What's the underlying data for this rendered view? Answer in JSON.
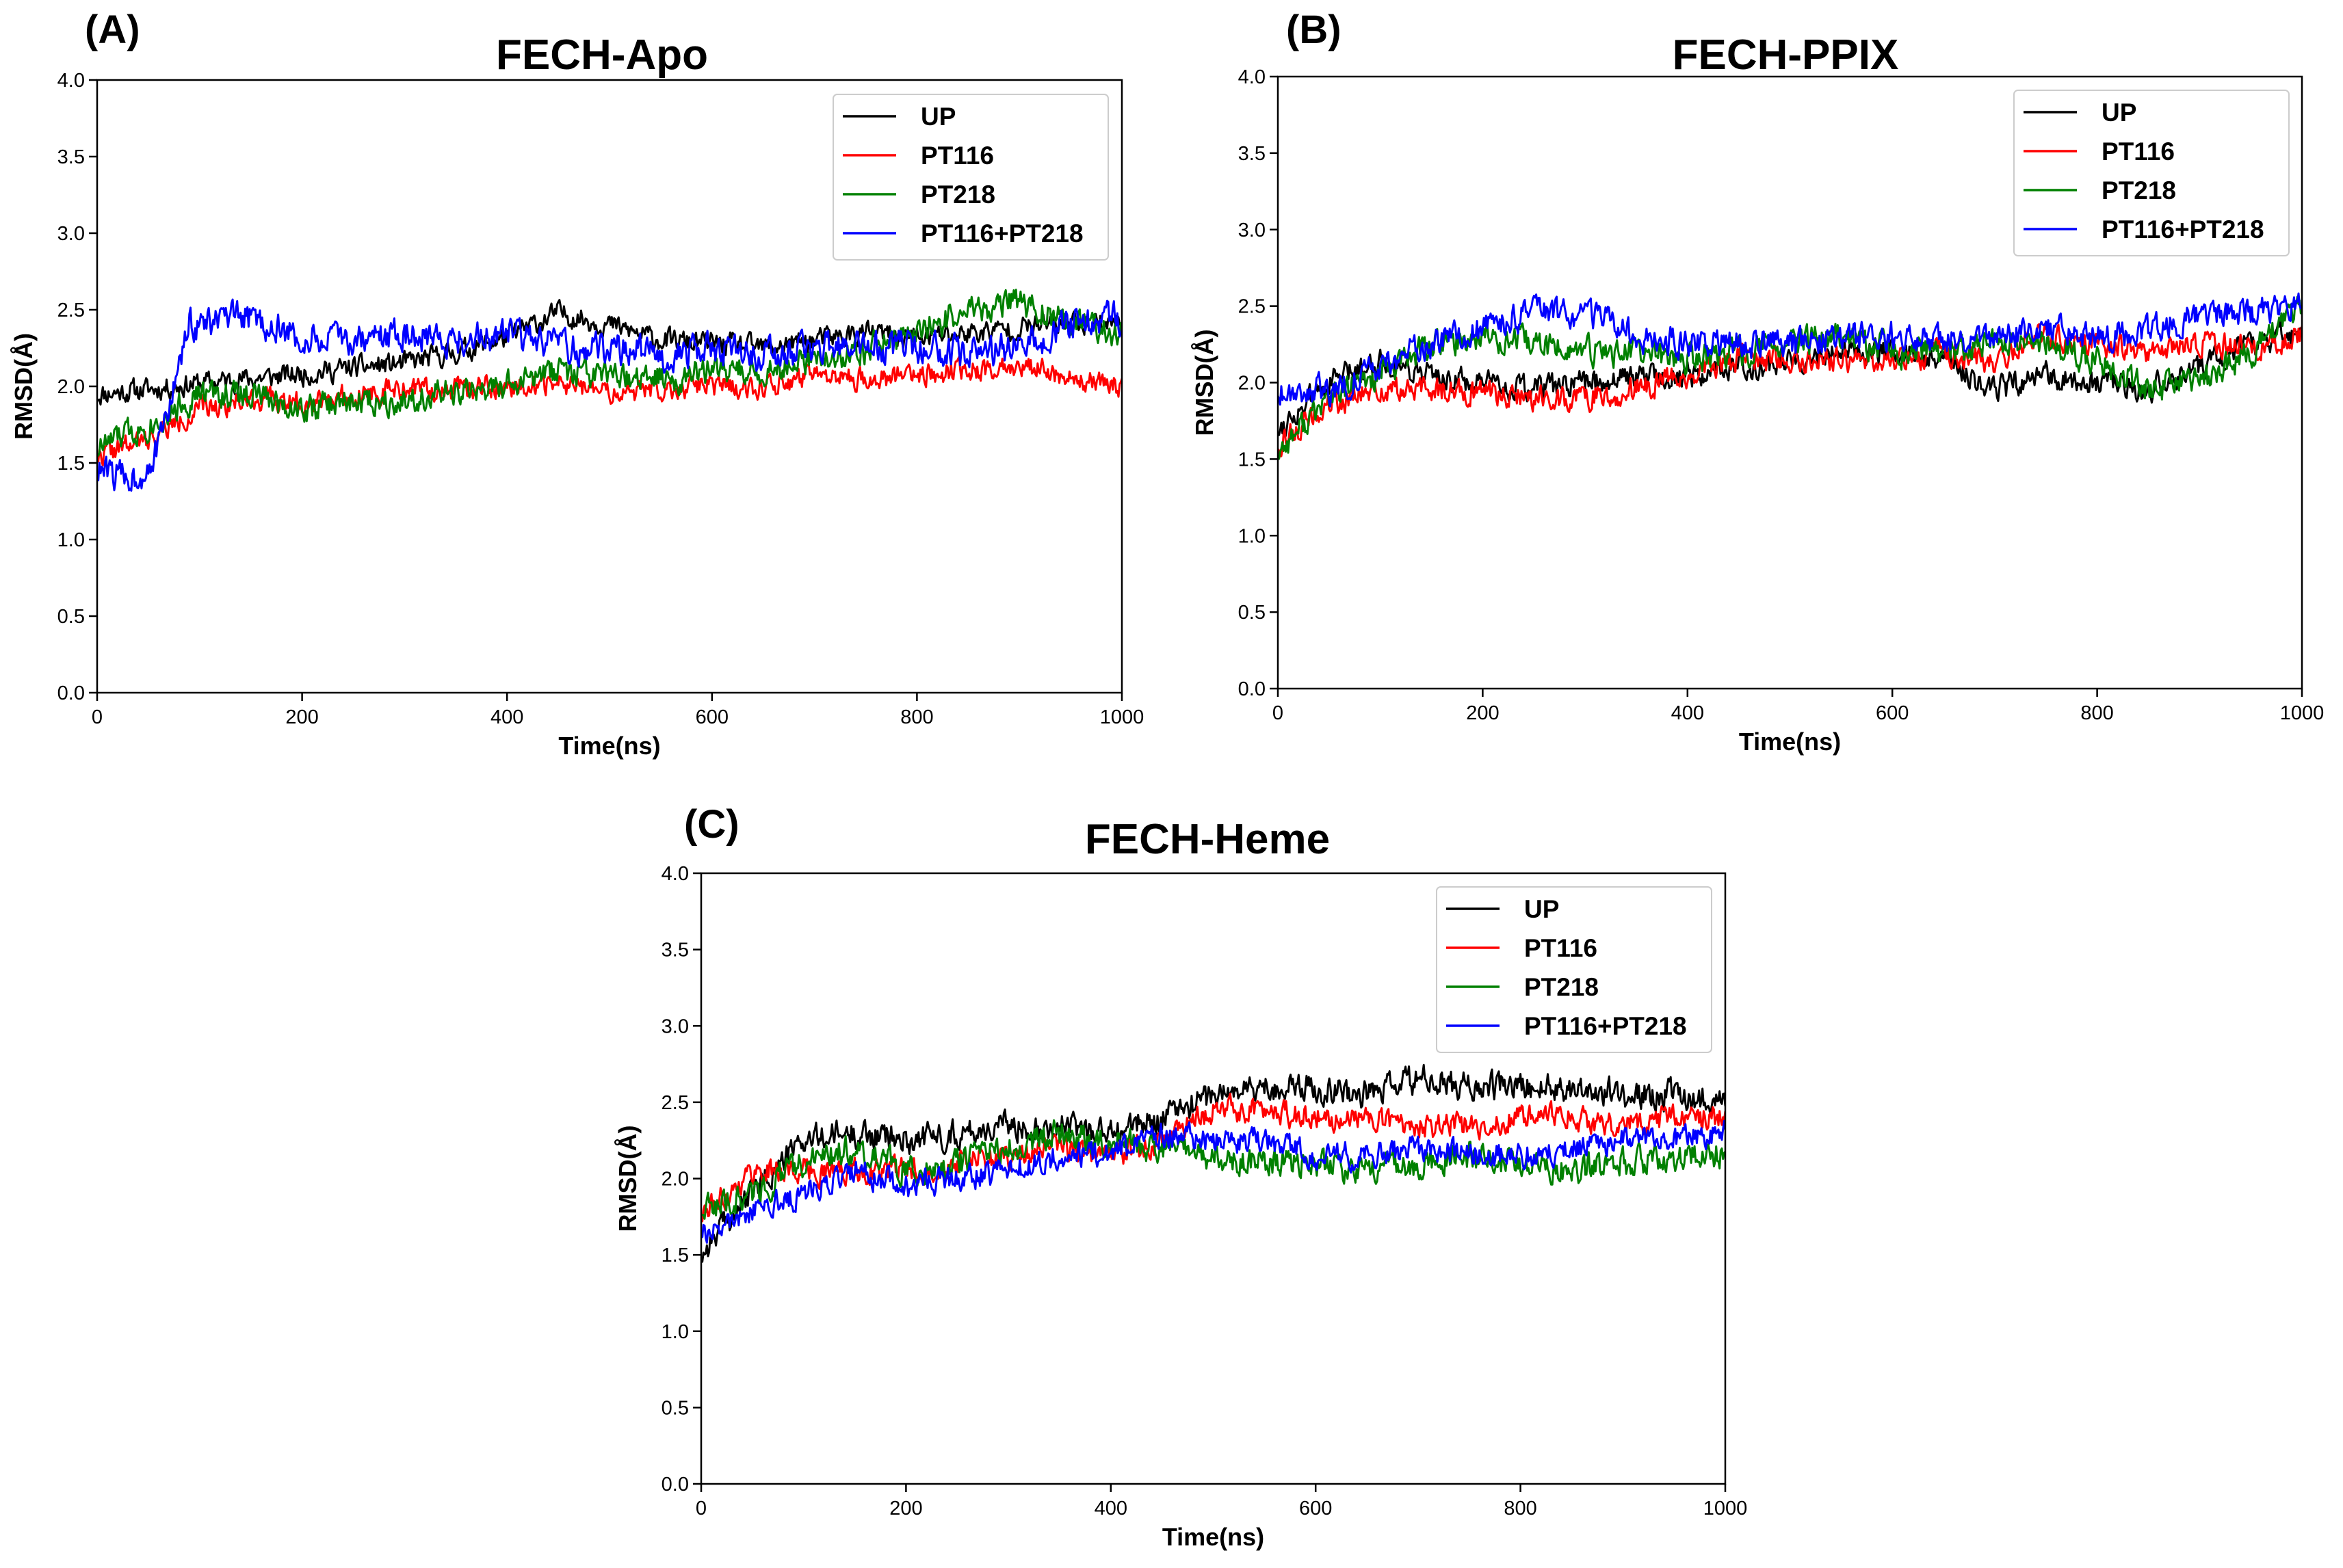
{
  "chart_data": [
    {
      "id": "A",
      "panel_label": "(A)",
      "type": "line",
      "title": "FECH-Apo",
      "xlabel": "Time(ns)",
      "ylabel": "RMSD(Å)",
      "xlim": [
        0,
        1000
      ],
      "ylim": [
        0.0,
        4.0
      ],
      "xticks": [
        "0",
        "200",
        "400",
        "600",
        "800",
        "1000"
      ],
      "yticks": [
        "0.0",
        "0.5",
        "1.0",
        "1.5",
        "2.0",
        "2.5",
        "3.0",
        "3.5",
        "4.0"
      ],
      "legend_position": "top-right",
      "series": [
        {
          "name": "UP",
          "color": "#000000",
          "noise": 0.07,
          "seed": 11,
          "x": [
            0,
            50,
            100,
            150,
            200,
            250,
            300,
            350,
            400,
            450,
            500,
            550,
            600,
            650,
            700,
            750,
            800,
            850,
            900,
            950,
            1000
          ],
          "values": [
            1.95,
            1.98,
            2.02,
            2.05,
            2.08,
            2.12,
            2.15,
            2.22,
            2.32,
            2.48,
            2.4,
            2.3,
            2.28,
            2.25,
            2.3,
            2.35,
            2.32,
            2.35,
            2.38,
            2.42,
            2.42
          ]
        },
        {
          "name": "PT116",
          "color": "#ff0000",
          "noise": 0.07,
          "seed": 22,
          "x": [
            0,
            50,
            100,
            150,
            200,
            250,
            300,
            350,
            400,
            450,
            500,
            550,
            600,
            650,
            700,
            750,
            800,
            850,
            900,
            950,
            1000
          ],
          "values": [
            1.55,
            1.65,
            1.85,
            1.92,
            1.9,
            1.95,
            1.98,
            1.98,
            2.0,
            2.02,
            1.95,
            1.98,
            2.0,
            2.0,
            2.05,
            2.05,
            2.08,
            2.1,
            2.15,
            2.05,
            2.0
          ]
        },
        {
          "name": "PT218",
          "color": "#008000",
          "noise": 0.09,
          "seed": 33,
          "x": [
            0,
            50,
            100,
            150,
            200,
            250,
            300,
            350,
            400,
            450,
            500,
            550,
            600,
            650,
            700,
            750,
            800,
            850,
            900,
            950,
            1000
          ],
          "values": [
            1.6,
            1.75,
            1.95,
            1.95,
            1.85,
            1.9,
            1.92,
            1.95,
            2.0,
            2.1,
            2.05,
            2.05,
            2.1,
            2.1,
            2.15,
            2.25,
            2.35,
            2.5,
            2.55,
            2.4,
            2.35
          ]
        },
        {
          "name": "PT116+PT218",
          "color": "#0000ff",
          "noise": 0.1,
          "seed": 44,
          "x": [
            0,
            40,
            60,
            90,
            150,
            200,
            250,
            300,
            350,
            400,
            450,
            500,
            550,
            600,
            650,
            700,
            750,
            800,
            850,
            900,
            950,
            1000
          ],
          "values": [
            1.45,
            1.4,
            1.6,
            2.4,
            2.45,
            2.3,
            2.3,
            2.35,
            2.3,
            2.35,
            2.25,
            2.25,
            2.2,
            2.25,
            2.2,
            2.25,
            2.25,
            2.25,
            2.22,
            2.25,
            2.4,
            2.45
          ]
        }
      ]
    },
    {
      "id": "B",
      "panel_label": "(B)",
      "type": "line",
      "title": "FECH-PPIX",
      "xlabel": "Time(ns)",
      "ylabel": "RMSD(Å)",
      "xlim": [
        0,
        1000
      ],
      "ylim": [
        0.0,
        4.0
      ],
      "xticks": [
        "0",
        "200",
        "400",
        "600",
        "800",
        "1000"
      ],
      "yticks": [
        "0.0",
        "0.5",
        "1.0",
        "1.5",
        "2.0",
        "2.5",
        "3.0",
        "3.5",
        "4.0"
      ],
      "legend_position": "top-right",
      "series": [
        {
          "name": "UP",
          "color": "#000000",
          "noise": 0.08,
          "seed": 55,
          "x": [
            0,
            50,
            100,
            150,
            200,
            250,
            300,
            350,
            400,
            450,
            500,
            550,
            600,
            650,
            700,
            750,
            800,
            850,
            900,
            950,
            1000
          ],
          "values": [
            1.7,
            2.0,
            2.15,
            2.05,
            1.98,
            1.95,
            2.0,
            2.05,
            2.05,
            2.1,
            2.15,
            2.2,
            2.2,
            2.15,
            1.95,
            2.05,
            2.0,
            1.95,
            2.1,
            2.25,
            2.35
          ]
        },
        {
          "name": "PT116",
          "color": "#ff0000",
          "noise": 0.08,
          "seed": 66,
          "x": [
            0,
            50,
            100,
            150,
            200,
            250,
            300,
            350,
            400,
            450,
            500,
            550,
            600,
            650,
            700,
            750,
            800,
            850,
            900,
            950,
            1000
          ],
          "values": [
            1.6,
            1.85,
            1.95,
            1.95,
            1.95,
            1.9,
            1.9,
            1.95,
            2.05,
            2.15,
            2.15,
            2.15,
            2.15,
            2.2,
            2.15,
            2.3,
            2.25,
            2.2,
            2.25,
            2.25,
            2.3
          ]
        },
        {
          "name": "PT218",
          "color": "#008000",
          "noise": 0.09,
          "seed": 77,
          "x": [
            0,
            50,
            100,
            150,
            200,
            250,
            300,
            350,
            400,
            450,
            500,
            550,
            600,
            650,
            700,
            750,
            800,
            850,
            900,
            950,
            1000
          ],
          "values": [
            1.55,
            1.9,
            2.05,
            2.25,
            2.3,
            2.25,
            2.2,
            2.2,
            2.15,
            2.2,
            2.25,
            2.3,
            2.2,
            2.2,
            2.25,
            2.25,
            2.15,
            1.95,
            2.0,
            2.2,
            2.5
          ]
        },
        {
          "name": "PT116+PT218",
          "color": "#0000ff",
          "noise": 0.09,
          "seed": 88,
          "x": [
            0,
            50,
            100,
            150,
            200,
            250,
            300,
            350,
            400,
            450,
            500,
            550,
            600,
            650,
            700,
            750,
            800,
            850,
            900,
            950,
            1000
          ],
          "values": [
            1.95,
            1.95,
            2.1,
            2.25,
            2.35,
            2.45,
            2.45,
            2.3,
            2.25,
            2.25,
            2.25,
            2.3,
            2.3,
            2.3,
            2.3,
            2.35,
            2.3,
            2.35,
            2.45,
            2.45,
            2.5
          ]
        }
      ]
    },
    {
      "id": "C",
      "panel_label": "(C)",
      "type": "line",
      "title": "FECH-Heme",
      "xlabel": "Time(ns)",
      "ylabel": "RMSD(Å)",
      "xlim": [
        0,
        1000
      ],
      "ylim": [
        0.0,
        4.0
      ],
      "xticks": [
        "0",
        "200",
        "400",
        "600",
        "800",
        "1000"
      ],
      "yticks": [
        "0.0",
        "0.5",
        "1.0",
        "1.5",
        "2.0",
        "2.5",
        "3.0",
        "3.5",
        "4.0"
      ],
      "legend_position": "top-right",
      "series": [
        {
          "name": "UP",
          "color": "#000000",
          "noise": 0.09,
          "seed": 99,
          "x": [
            0,
            10,
            50,
            100,
            150,
            200,
            250,
            300,
            350,
            400,
            450,
            500,
            550,
            600,
            650,
            700,
            750,
            800,
            850,
            900,
            950,
            1000
          ],
          "values": [
            1.5,
            1.6,
            1.9,
            2.25,
            2.3,
            2.25,
            2.3,
            2.35,
            2.35,
            2.3,
            2.4,
            2.55,
            2.6,
            2.6,
            2.55,
            2.65,
            2.6,
            2.6,
            2.6,
            2.55,
            2.55,
            2.5
          ]
        },
        {
          "name": "PT116",
          "color": "#ff0000",
          "noise": 0.08,
          "seed": 111,
          "x": [
            0,
            50,
            100,
            150,
            200,
            250,
            300,
            350,
            400,
            450,
            500,
            550,
            600,
            650,
            700,
            750,
            800,
            850,
            900,
            950,
            1000
          ],
          "values": [
            1.75,
            2.05,
            2.05,
            2.05,
            2.05,
            2.1,
            2.15,
            2.2,
            2.15,
            2.25,
            2.45,
            2.45,
            2.4,
            2.4,
            2.35,
            2.35,
            2.4,
            2.4,
            2.35,
            2.4,
            2.4
          ]
        },
        {
          "name": "PT218",
          "color": "#008000",
          "noise": 0.09,
          "seed": 122,
          "x": [
            0,
            50,
            100,
            150,
            200,
            250,
            300,
            350,
            400,
            450,
            500,
            550,
            600,
            650,
            700,
            750,
            800,
            850,
            900,
            950,
            1000
          ],
          "values": [
            1.8,
            1.9,
            2.1,
            2.2,
            2.05,
            2.1,
            2.2,
            2.3,
            2.25,
            2.2,
            2.15,
            2.1,
            2.1,
            2.05,
            2.1,
            2.15,
            2.1,
            2.05,
            2.1,
            2.15,
            2.15
          ]
        },
        {
          "name": "PT116+PT218",
          "color": "#0000ff",
          "noise": 0.08,
          "seed": 133,
          "x": [
            0,
            50,
            100,
            150,
            200,
            250,
            300,
            350,
            400,
            450,
            500,
            550,
            600,
            650,
            700,
            750,
            800,
            850,
            900,
            950,
            1000
          ],
          "values": [
            1.65,
            1.8,
            1.9,
            2.05,
            1.95,
            2.0,
            2.05,
            2.15,
            2.15,
            2.3,
            2.25,
            2.25,
            2.15,
            2.15,
            2.2,
            2.15,
            2.15,
            2.2,
            2.25,
            2.25,
            2.3
          ]
        }
      ]
    }
  ]
}
